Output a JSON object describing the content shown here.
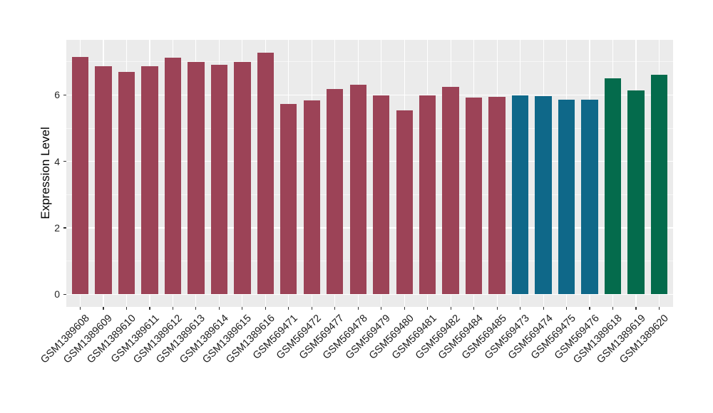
{
  "chart_data": {
    "type": "bar",
    "title": "",
    "xlabel": "",
    "ylabel": "Expression Level",
    "categories": [
      "GSM1389608",
      "GSM1389609",
      "GSM1389610",
      "GSM1389611",
      "GSM1389612",
      "GSM1389613",
      "GSM1389614",
      "GSM1389615",
      "GSM1389616",
      "GSM569471",
      "GSM569472",
      "GSM569477",
      "GSM569478",
      "GSM569479",
      "GSM569480",
      "GSM569481",
      "GSM569482",
      "GSM569484",
      "GSM569485",
      "GSM569473",
      "GSM569474",
      "GSM569475",
      "GSM569476",
      "GSM1389618",
      "GSM1389619",
      "GSM1389620"
    ],
    "values": [
      7.15,
      6.86,
      6.7,
      6.87,
      7.12,
      6.99,
      6.91,
      7.0,
      7.27,
      5.74,
      5.83,
      6.18,
      6.3,
      5.98,
      5.53,
      5.98,
      6.25,
      5.92,
      5.95,
      5.99,
      5.96,
      5.86,
      5.86,
      6.51,
      6.13,
      6.61
    ],
    "bar_colors": [
      "#9C4357",
      "#9C4357",
      "#9C4357",
      "#9C4357",
      "#9C4357",
      "#9C4357",
      "#9C4357",
      "#9C4357",
      "#9C4357",
      "#9C4357",
      "#9C4357",
      "#9C4357",
      "#9C4357",
      "#9C4357",
      "#9C4357",
      "#9C4357",
      "#9C4357",
      "#9C4357",
      "#9C4357",
      "#0F6889",
      "#0F6889",
      "#0F6889",
      "#0F6889",
      "#046B4C",
      "#046B4C",
      "#046B4C"
    ],
    "palette": {
      "crimson": "#9C4357",
      "teal": "#0F6889",
      "green": "#046B4C"
    },
    "yticks": [
      0,
      2,
      4,
      6
    ],
    "yticks_minor": [
      1,
      3,
      5,
      7
    ],
    "ylim": [
      -0.38,
      7.66
    ],
    "grid": true,
    "legend_position": "none",
    "panel_background": "#EBEBEB",
    "grid_color": "#FFFFFF",
    "figure_background": "#FFFFFF",
    "axis_text_color": "#262626"
  }
}
